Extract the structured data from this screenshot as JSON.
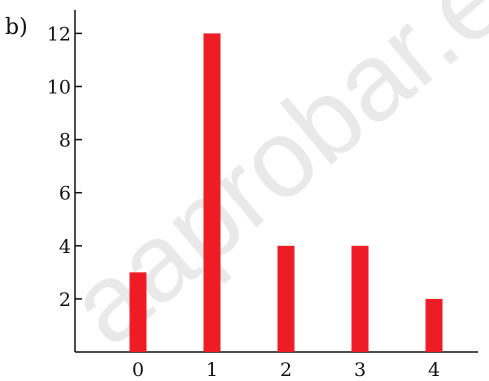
{
  "panel_label": "b)",
  "watermark_text": "aaprobar.e",
  "chart_data": {
    "type": "bar",
    "categories": [
      "0",
      "1",
      "2",
      "3",
      "4"
    ],
    "values": [
      3,
      12,
      4,
      4,
      2
    ],
    "yticks": [
      "2",
      "4",
      "6",
      "8",
      "10",
      "12"
    ],
    "ylim": [
      0,
      13
    ],
    "xlabel": "",
    "ylabel": "",
    "grid": false,
    "bar_color": "#ee1c25",
    "axis_color": "#111111"
  }
}
